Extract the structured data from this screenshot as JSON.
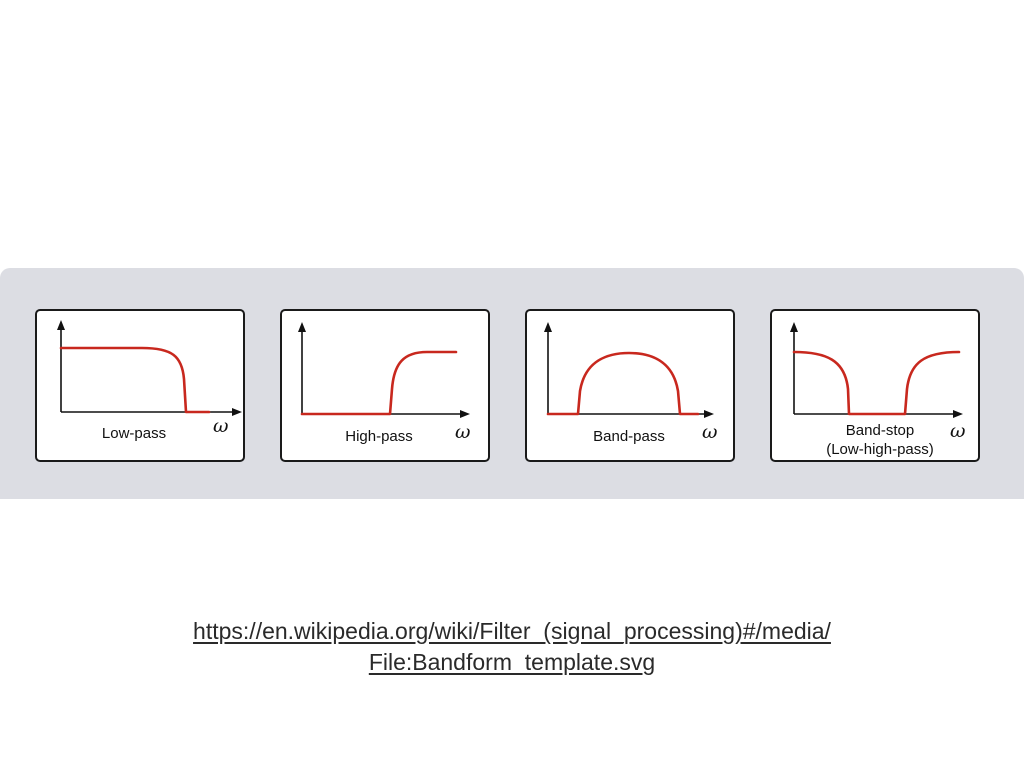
{
  "diagram": {
    "axis_symbol": "ω",
    "panels": [
      {
        "id": "low-pass",
        "label_lines": [
          "Low-pass"
        ]
      },
      {
        "id": "high-pass",
        "label_lines": [
          "High-pass"
        ]
      },
      {
        "id": "band-pass",
        "label_lines": [
          "Band-pass"
        ]
      },
      {
        "id": "band-stop",
        "label_lines": [
          "Band-stop",
          "(Low-high-pass)"
        ]
      }
    ]
  },
  "caption": {
    "line1": "https://en.wikipedia.org/wiki/Filter_(signal_processing)#/media/",
    "line2": "File:Bandform_template.svg"
  },
  "colors": {
    "background": "#ffffff",
    "band": "#dcdde3",
    "curve": "#c8281e",
    "axes": "#111111"
  }
}
